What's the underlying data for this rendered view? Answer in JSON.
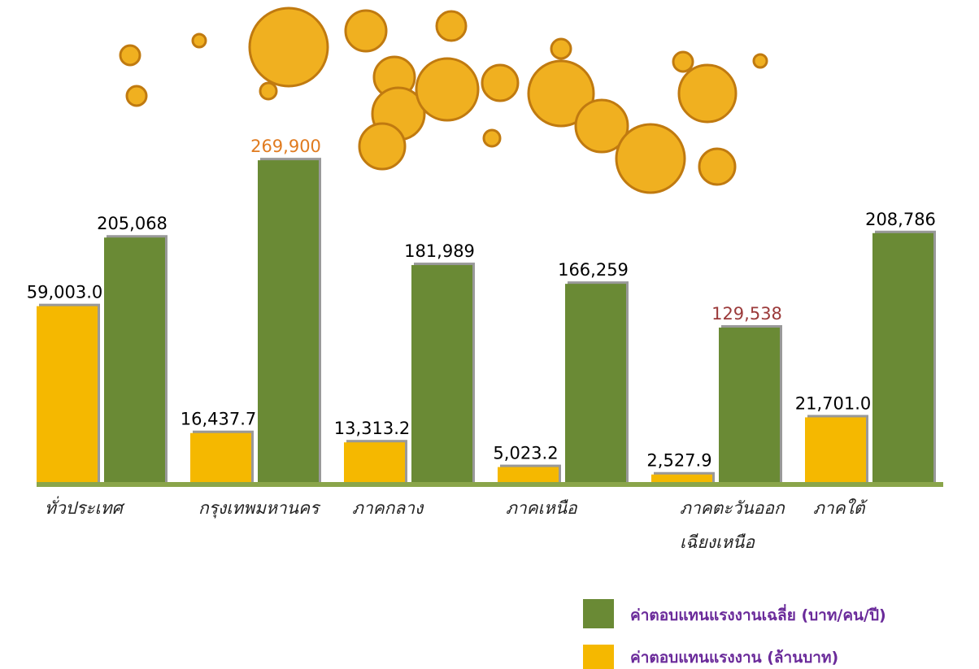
{
  "chart_data": {
    "type": "bar",
    "categories": [
      "ทั่วประเทศ",
      "กรุงเทพมหานคร",
      "ภาคกลาง",
      "ภาคเหนือ",
      "ภาคตะวันออก\nเฉียงเหนือ",
      "ภาคใต้"
    ],
    "series": [
      {
        "name": "ค่าตอบแทนแรงงาน (ล้านบาท)",
        "color": "#f5b800",
        "axis": "y2",
        "values": [
          59003.0,
          16437.7,
          13313.2,
          5023.2,
          2527.9,
          21701.0
        ],
        "value_labels": [
          "59,003.0",
          "16,437.7",
          "13,313.2",
          "5,023.2",
          "2,527.9",
          "21,701.0"
        ]
      },
      {
        "name": "ค่าตอบแทนแรงงานเฉลี่ย (บาท/คน/ปี)",
        "color": "#6a8a35",
        "values": [
          205068,
          269900,
          181989,
          166259,
          129538,
          208786
        ],
        "value_labels": [
          "205,068",
          "269,900",
          "181,989",
          "166,259",
          "129,538",
          "208,786"
        ],
        "value_label_colors": [
          "#000000",
          "#e07b20",
          "#000000",
          "#000000",
          "#9b3a3a",
          "#000000"
        ]
      }
    ],
    "ylim": [
      0,
      300000
    ],
    "y2lim": [
      0,
      120000
    ]
  }
}
